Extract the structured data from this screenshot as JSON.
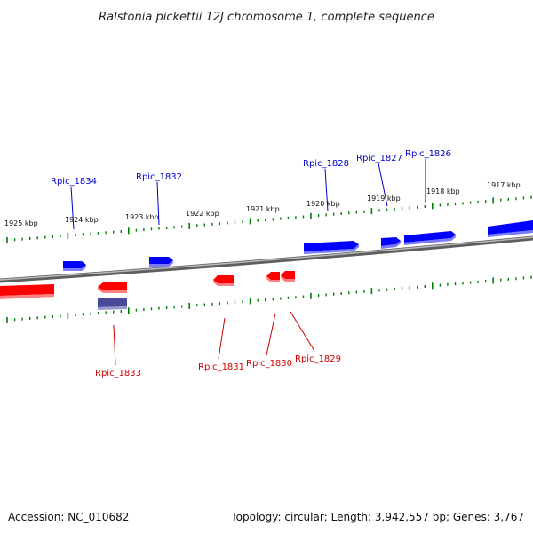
{
  "title": "Ralstonia pickettii 12J chromosome 1, complete sequence",
  "footer": {
    "accession": "Accession: NC_010682",
    "summary": "Topology: circular; Length: 3,942,557 bp; Genes: 3,767"
  },
  "colors": {
    "forward_gene": "#0000ff",
    "reverse_gene": "#ff0000",
    "other_gene": "#5a5aa8",
    "backbone": "#7a7a7a",
    "tick_mark": "#008000",
    "forward_label": "#0000cc",
    "reverse_label": "#cc0000"
  },
  "scale_ticks": [
    {
      "label": "1925 kbp",
      "kbp": 1925
    },
    {
      "label": "1924 kbp",
      "kbp": 1924
    },
    {
      "label": "1923 kbp",
      "kbp": 1923
    },
    {
      "label": "1922 kbp",
      "kbp": 1922
    },
    {
      "label": "1921 kbp",
      "kbp": 1921
    },
    {
      "label": "1920 kbp",
      "kbp": 1920
    },
    {
      "label": "1919 kbp",
      "kbp": 1919
    },
    {
      "label": "1918 kbp",
      "kbp": 1918
    },
    {
      "label": "1917 kbp",
      "kbp": 1917
    }
  ],
  "gene_labels": [
    {
      "name": "Rpic_1834",
      "strand": "forward"
    },
    {
      "name": "Rpic_1832",
      "strand": "forward"
    },
    {
      "name": "Rpic_1828",
      "strand": "forward"
    },
    {
      "name": "Rpic_1827",
      "strand": "forward"
    },
    {
      "name": "Rpic_1826",
      "strand": "forward"
    },
    {
      "name": "Rpic_1833",
      "strand": "reverse"
    },
    {
      "name": "Rpic_1831",
      "strand": "reverse"
    },
    {
      "name": "Rpic_1830",
      "strand": "reverse"
    },
    {
      "name": "Rpic_1829",
      "strand": "reverse"
    }
  ]
}
